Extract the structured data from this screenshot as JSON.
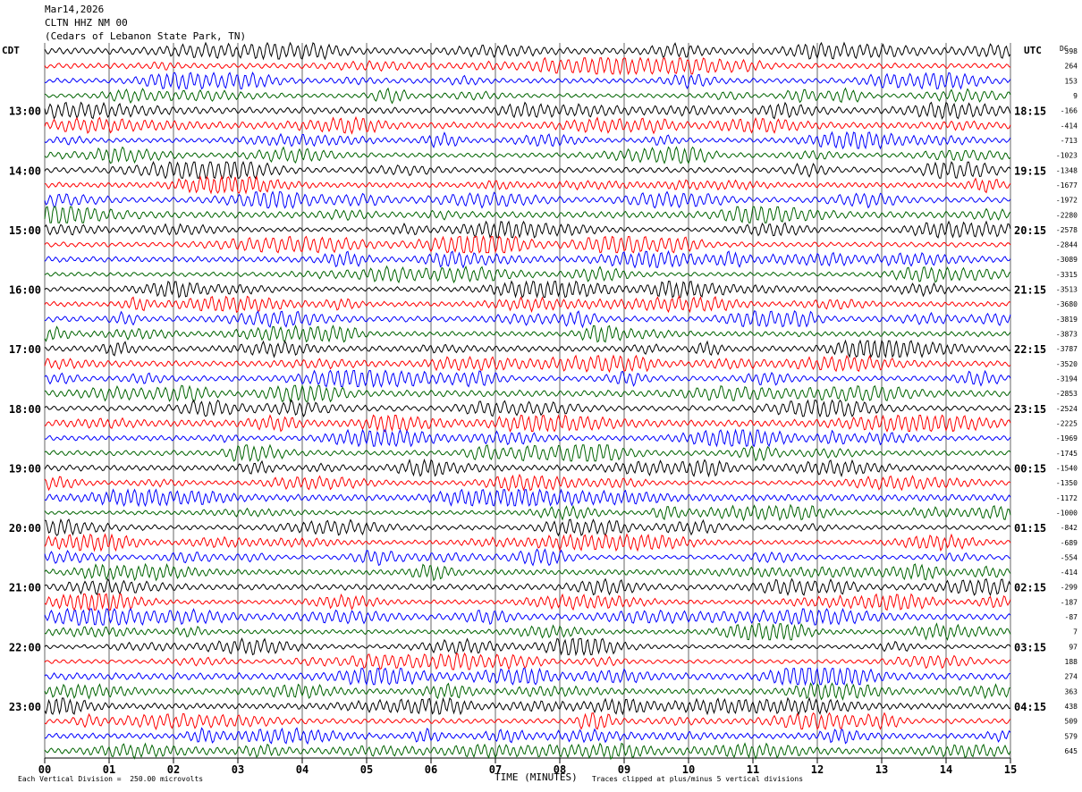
{
  "header": {
    "date": "Mar14,2026",
    "station": "CLTN HHZ NM 00",
    "location": "(Cedars of Lebanon State Park, TN)"
  },
  "left_zone": "CDT",
  "right_zone": "UTC",
  "dc_label": "DC",
  "footer": {
    "scale_note": "Each Vertical Division =  250.00 microvolts",
    "xlabel": "TIME (MINUTES)",
    "clip_note": "Traces clipped at plus/minus 5 vertical divisions"
  },
  "colors": {
    "trace_cycle": [
      "#000000",
      "#ff0000",
      "#0000ff",
      "#006400"
    ],
    "grid": "#000000"
  },
  "chart_data": {
    "type": "line",
    "x_ticks": [
      "00",
      "01",
      "02",
      "03",
      "04",
      "05",
      "06",
      "07",
      "08",
      "09",
      "10",
      "11",
      "12",
      "13",
      "14",
      "15"
    ],
    "xlim": [
      0,
      15
    ],
    "left_time_labels": [
      {
        "row": 4,
        "label": "13:00"
      },
      {
        "row": 8,
        "label": "14:00"
      },
      {
        "row": 12,
        "label": "15:00"
      },
      {
        "row": 16,
        "label": "16:00"
      },
      {
        "row": 20,
        "label": "17:00"
      },
      {
        "row": 24,
        "label": "18:00"
      },
      {
        "row": 28,
        "label": "19:00"
      },
      {
        "row": 32,
        "label": "20:00"
      },
      {
        "row": 36,
        "label": "21:00"
      },
      {
        "row": 40,
        "label": "22:00"
      },
      {
        "row": 44,
        "label": "23:00"
      }
    ],
    "right_time_labels": [
      {
        "row": 4,
        "label": "18:15"
      },
      {
        "row": 8,
        "label": "19:15"
      },
      {
        "row": 12,
        "label": "20:15"
      },
      {
        "row": 16,
        "label": "21:15"
      },
      {
        "row": 20,
        "label": "22:15"
      },
      {
        "row": 24,
        "label": "23:15"
      },
      {
        "row": 28,
        "label": "00:15"
      },
      {
        "row": 32,
        "label": "01:15"
      },
      {
        "row": 36,
        "label": "02:15"
      },
      {
        "row": 40,
        "label": "03:15"
      },
      {
        "row": 44,
        "label": "04:15"
      }
    ],
    "dc_offsets": [
      398,
      264,
      153,
      9,
      -166,
      -414,
      -713,
      -1023,
      -1348,
      -1677,
      -1972,
      -2280,
      -2578,
      -2844,
      -3089,
      -3315,
      -3513,
      -3680,
      -3819,
      -3873,
      -3787,
      -3520,
      -3194,
      -2853,
      -2524,
      -2225,
      -1969,
      -1745,
      -1540,
      -1350,
      -1172,
      -1000,
      -842,
      -689,
      -554,
      -414,
      -299,
      -187,
      -87,
      7,
      97,
      188,
      274,
      363,
      438,
      509,
      579,
      645
    ],
    "trace_count": 48
  }
}
